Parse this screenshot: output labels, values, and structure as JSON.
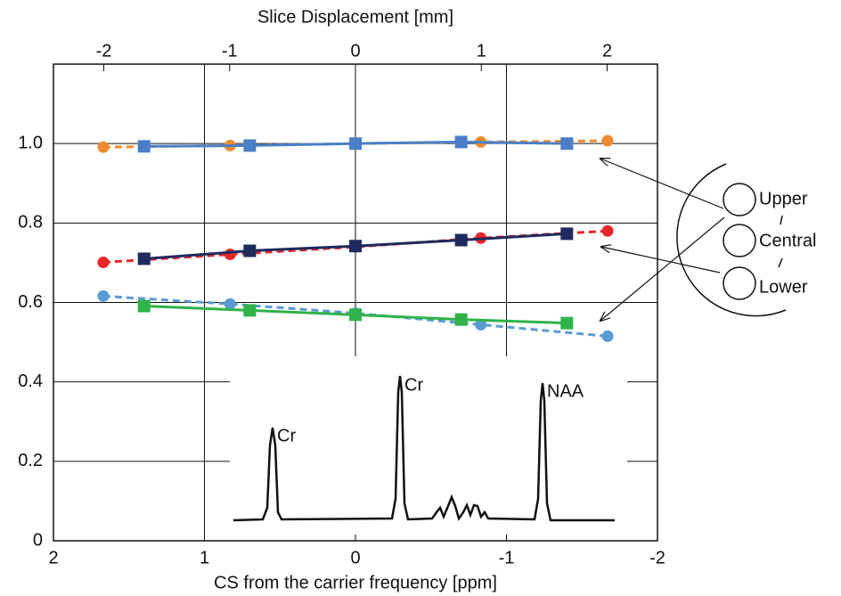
{
  "chart_data": {
    "type": "line",
    "title": "Slice Displacement [mm]",
    "x_label": "CS from the carrier frequency [ppm]",
    "xlim": [
      2,
      -2
    ],
    "xticks": [
      2,
      1,
      0,
      -1,
      -2
    ],
    "x2lim": [
      -2.4,
      2.4
    ],
    "x2ticks": [
      -2,
      -1,
      0,
      1,
      2
    ],
    "ylim": [
      0,
      1.2
    ],
    "yticks": [
      0,
      0.2,
      0.4,
      0.6,
      0.8,
      {
        "value": 1,
        "label": "1.0"
      }
    ],
    "grid": true,
    "series": [
      {
        "color": "#f08a30",
        "linestyle": "dashed",
        "marker": "circle",
        "x": [
          1.67,
          0.83,
          0,
          -0.83,
          -1.67
        ],
        "values": [
          0.991,
          0.995,
          1.0,
          1.004,
          1.007
        ]
      },
      {
        "color": "#4a7fc7",
        "linestyle": "solid",
        "marker": "square",
        "x": [
          1.4,
          0.7,
          0,
          -0.7,
          -1.4
        ],
        "values": [
          0.993,
          0.995,
          1.0,
          1.004,
          1.0
        ]
      },
      {
        "color": "#e8262a",
        "linestyle": "dashed",
        "marker": "circle",
        "x": [
          1.67,
          0.83,
          0,
          -0.83,
          -1.67
        ],
        "values": [
          0.701,
          0.721,
          0.74,
          0.762,
          0.78
        ]
      },
      {
        "color": "#1f2a5e",
        "linestyle": "solid",
        "marker": "square",
        "x": [
          1.4,
          0.7,
          0,
          -0.7,
          -1.4
        ],
        "values": [
          0.71,
          0.73,
          0.742,
          0.757,
          0.773
        ]
      },
      {
        "color": "#5b9bd5",
        "linestyle": "dashed",
        "marker": "circle",
        "x": [
          1.67,
          0.83,
          0,
          -0.83,
          -1.67
        ],
        "values": [
          0.616,
          0.596,
          0.573,
          0.544,
          0.515
        ]
      },
      {
        "color": "#2fb34a",
        "linestyle": "solid",
        "marker": "square",
        "x": [
          1.4,
          0.7,
          0,
          -0.7,
          -1.4
        ],
        "values": [
          0.591,
          0.58,
          0.569,
          0.557,
          0.548
        ]
      }
    ],
    "peak_labels": [
      "Cr",
      "Cr",
      "NAA"
    ],
    "region_labels": [
      "Upper",
      "Central",
      "Lower"
    ]
  }
}
